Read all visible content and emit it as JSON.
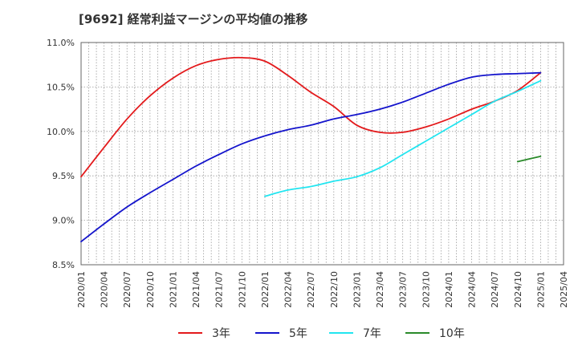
{
  "chart_data": {
    "type": "line",
    "title": "[9692]  経常利益マージンの平均値の推移",
    "xlabel": "",
    "ylabel": "",
    "ylim": [
      8.5,
      11.0
    ],
    "grid": true,
    "legend_position": "bottom",
    "y_ticks": [
      8.5,
      9.0,
      9.5,
      10.0,
      10.5,
      11.0
    ],
    "y_tick_labels": [
      "8.5%",
      "9.0%",
      "9.5%",
      "10.0%",
      "10.5%",
      "11.0%"
    ],
    "x_tick_labels": [
      "2020/01",
      "2020/04",
      "2020/07",
      "2020/10",
      "2021/01",
      "2021/04",
      "2021/07",
      "2021/10",
      "2022/01",
      "2022/04",
      "2022/07",
      "2022/10",
      "2023/01",
      "2023/04",
      "2023/07",
      "2023/10",
      "2024/01",
      "2024/04",
      "2024/07",
      "2024/10",
      "2025/01",
      "2025/04"
    ],
    "series": [
      {
        "name": "3年",
        "color": "#e31a1c",
        "points": [
          [
            "2020/01",
            9.49
          ],
          [
            "2020/04",
            9.82
          ],
          [
            "2020/07",
            10.14
          ],
          [
            "2020/10",
            10.4
          ],
          [
            "2021/01",
            10.6
          ],
          [
            "2021/04",
            10.74
          ],
          [
            "2021/07",
            10.81
          ],
          [
            "2021/10",
            10.83
          ],
          [
            "2022/01",
            10.79
          ],
          [
            "2022/04",
            10.63
          ],
          [
            "2022/07",
            10.44
          ],
          [
            "2022/10",
            10.28
          ],
          [
            "2023/01",
            10.07
          ],
          [
            "2023/04",
            9.99
          ],
          [
            "2023/07",
            9.99
          ],
          [
            "2023/10",
            10.05
          ],
          [
            "2024/01",
            10.14
          ],
          [
            "2024/04",
            10.25
          ],
          [
            "2024/07",
            10.34
          ],
          [
            "2024/10",
            10.46
          ],
          [
            "2025/01",
            10.66
          ]
        ]
      },
      {
        "name": "5年",
        "color": "#1414cc",
        "points": [
          [
            "2020/01",
            8.76
          ],
          [
            "2020/04",
            8.96
          ],
          [
            "2020/07",
            9.15
          ],
          [
            "2020/10",
            9.31
          ],
          [
            "2021/01",
            9.46
          ],
          [
            "2021/04",
            9.61
          ],
          [
            "2021/07",
            9.74
          ],
          [
            "2021/10",
            9.86
          ],
          [
            "2022/01",
            9.95
          ],
          [
            "2022/04",
            10.02
          ],
          [
            "2022/07",
            10.07
          ],
          [
            "2022/10",
            10.14
          ],
          [
            "2023/01",
            10.19
          ],
          [
            "2023/04",
            10.25
          ],
          [
            "2023/07",
            10.33
          ],
          [
            "2023/10",
            10.43
          ],
          [
            "2024/01",
            10.53
          ],
          [
            "2024/04",
            10.61
          ],
          [
            "2024/07",
            10.64
          ],
          [
            "2024/10",
            10.65
          ],
          [
            "2025/01",
            10.66
          ]
        ]
      },
      {
        "name": "7年",
        "color": "#22e5f0",
        "points": [
          [
            "2022/01",
            9.27
          ],
          [
            "2022/04",
            9.34
          ],
          [
            "2022/07",
            9.38
          ],
          [
            "2022/10",
            9.44
          ],
          [
            "2023/01",
            9.49
          ],
          [
            "2023/04",
            9.59
          ],
          [
            "2023/07",
            9.74
          ],
          [
            "2023/10",
            9.89
          ],
          [
            "2024/01",
            10.04
          ],
          [
            "2024/04",
            10.19
          ],
          [
            "2024/07",
            10.34
          ],
          [
            "2024/10",
            10.45
          ],
          [
            "2025/01",
            10.57
          ]
        ]
      },
      {
        "name": "10年",
        "color": "#2a8a2a",
        "points": [
          [
            "2024/10",
            9.66
          ],
          [
            "2025/01",
            9.72
          ]
        ]
      }
    ]
  }
}
